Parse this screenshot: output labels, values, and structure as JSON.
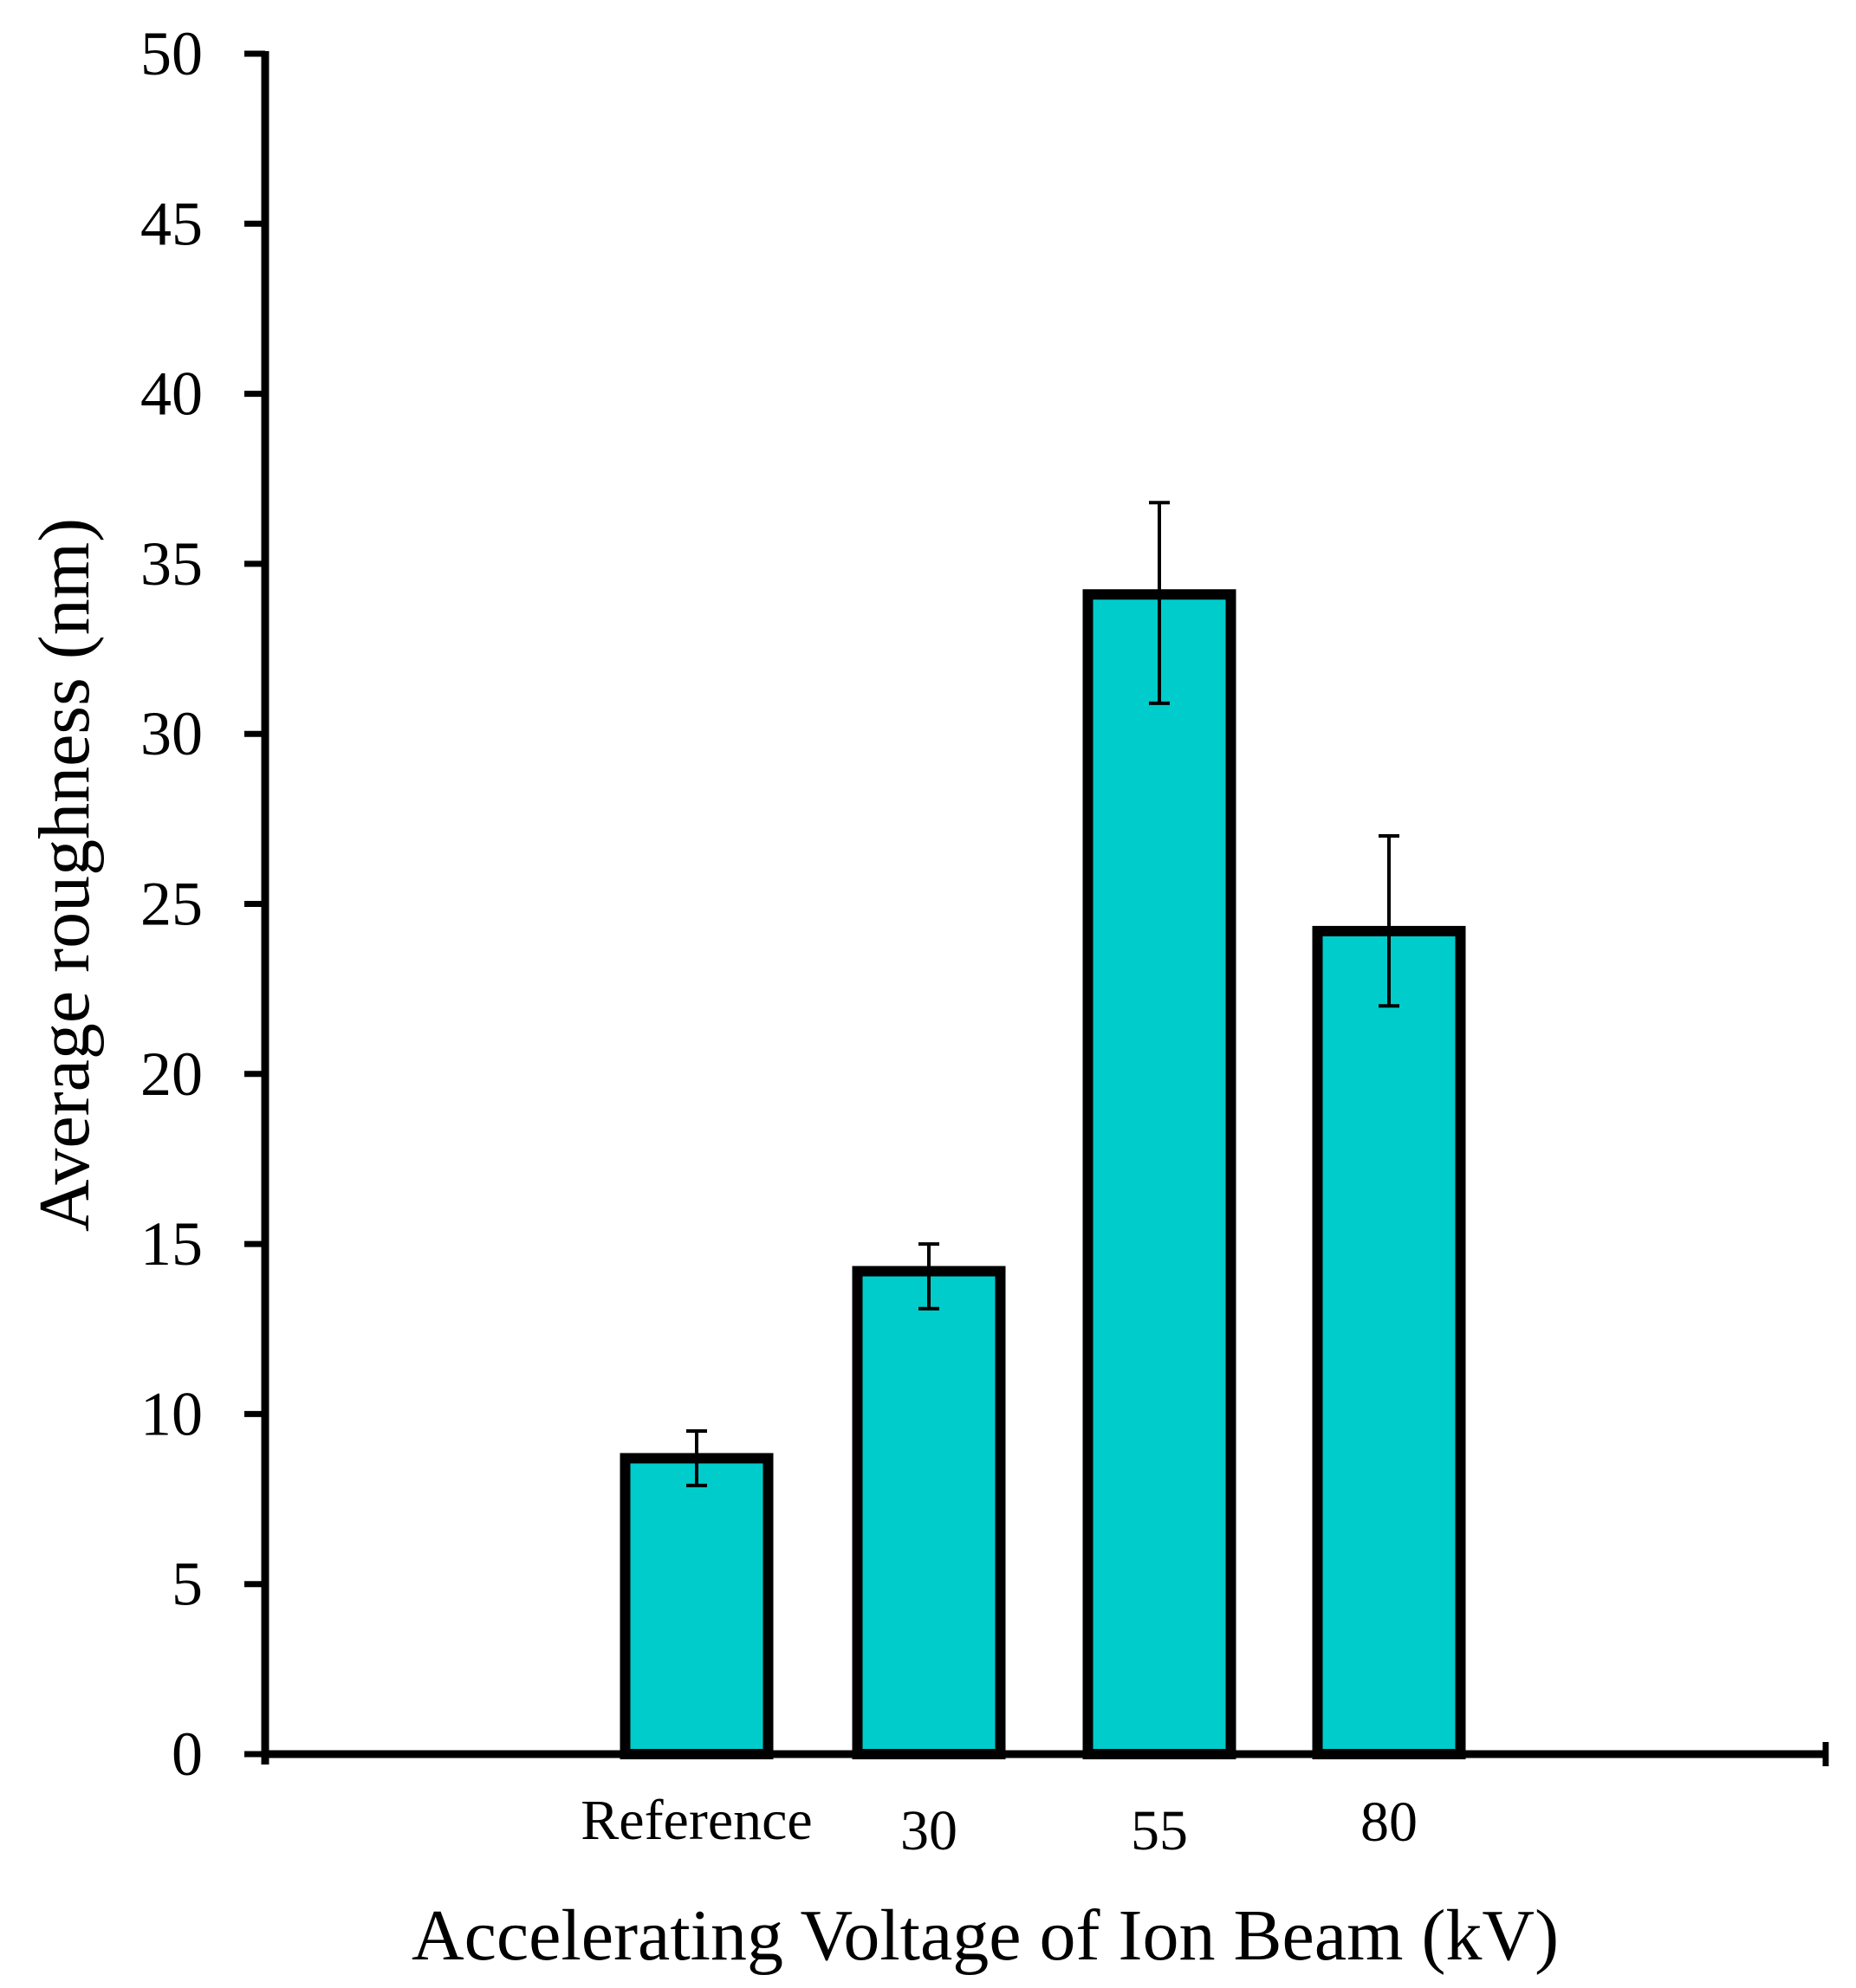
{
  "chart_data": {
    "type": "bar",
    "title": "",
    "xlabel": "Accelerating Voltage of Ion Beam (kV)",
    "ylabel": "Average roughness (nm)",
    "categories": [
      "Reference",
      "30",
      "55",
      "80"
    ],
    "values": [
      8.7,
      14.2,
      34.1,
      24.2
    ],
    "error_low": [
      7.9,
      13.1,
      30.9,
      22.0
    ],
    "error_high": [
      9.5,
      15.0,
      36.8,
      27.0
    ],
    "ylim": [
      0,
      50
    ],
    "yticks": [
      0,
      5,
      10,
      15,
      20,
      25,
      30,
      35,
      40,
      45,
      50
    ],
    "grid": false,
    "legend": "none",
    "colors": {
      "bar_fill": "#00CCCC",
      "bar_stroke": "#000000",
      "axis": "#000000"
    }
  }
}
